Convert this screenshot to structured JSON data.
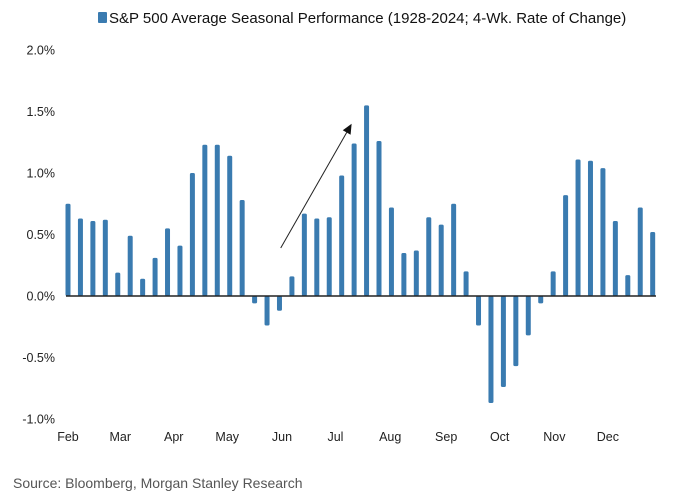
{
  "chart_data": {
    "type": "bar",
    "title": "S&P 500 Average Seasonal Performance (1928-2024; 4-Wk. Rate of Change)",
    "legend": [
      {
        "name": "S&P 500 Average Seasonal Performance (1928-2024; 4-Wk. Rate of Change)",
        "color": "#3a7bb0",
        "position": "top-center"
      }
    ],
    "xlabel": "",
    "ylabel": "",
    "ylim": [
      -1.0,
      2.0
    ],
    "yticks": [
      2.0,
      1.5,
      1.0,
      0.5,
      0.0,
      -0.5,
      -1.0
    ],
    "ytick_labels": [
      "2.0%",
      "1.5%",
      "1.0%",
      "0.5%",
      "0.0%",
      "-0.5%",
      "-1.0%"
    ],
    "grid": false,
    "month_labels": [
      {
        "label": "Feb",
        "index": 0
      },
      {
        "label": "Mar",
        "index": 4.2
      },
      {
        "label": "Apr",
        "index": 8.5
      },
      {
        "label": "May",
        "index": 12.8
      },
      {
        "label": "Jun",
        "index": 17.2
      },
      {
        "label": "Jul",
        "index": 21.5
      },
      {
        "label": "Aug",
        "index": 25.9
      },
      {
        "label": "Sep",
        "index": 30.4
      },
      {
        "label": "Oct",
        "index": 34.7
      },
      {
        "label": "Nov",
        "index": 39.1
      },
      {
        "label": "Dec",
        "index": 43.4
      }
    ],
    "series": [
      {
        "name": "S&P 500 Average Seasonal Performance (1928-2024; 4-Wk. Rate of Change)",
        "color": "#3a7bb0",
        "unit": "%",
        "values": [
          0.75,
          0.63,
          0.61,
          0.62,
          0.19,
          0.49,
          0.14,
          0.31,
          0.55,
          0.41,
          1.0,
          1.23,
          1.23,
          1.14,
          0.78,
          -0.06,
          -0.24,
          -0.12,
          0.16,
          0.67,
          0.63,
          0.64,
          0.98,
          1.24,
          1.55,
          1.26,
          0.72,
          0.35,
          0.37,
          0.64,
          0.58,
          0.75,
          0.2,
          -0.24,
          -0.87,
          -0.74,
          -0.57,
          -0.32,
          -0.06,
          0.2,
          0.82,
          1.11,
          1.1,
          1.04,
          0.61,
          0.17,
          0.72,
          0.52
        ]
      }
    ],
    "annotations": [
      {
        "type": "arrow",
        "description": "upward arrow from mid-June to mid-July indicating summer rally",
        "from_index": 17.1,
        "from_value": 0.39,
        "to_index": 22.8,
        "to_value": 1.4
      }
    ]
  },
  "source": "Source: Bloomberg, Morgan Stanley Research"
}
